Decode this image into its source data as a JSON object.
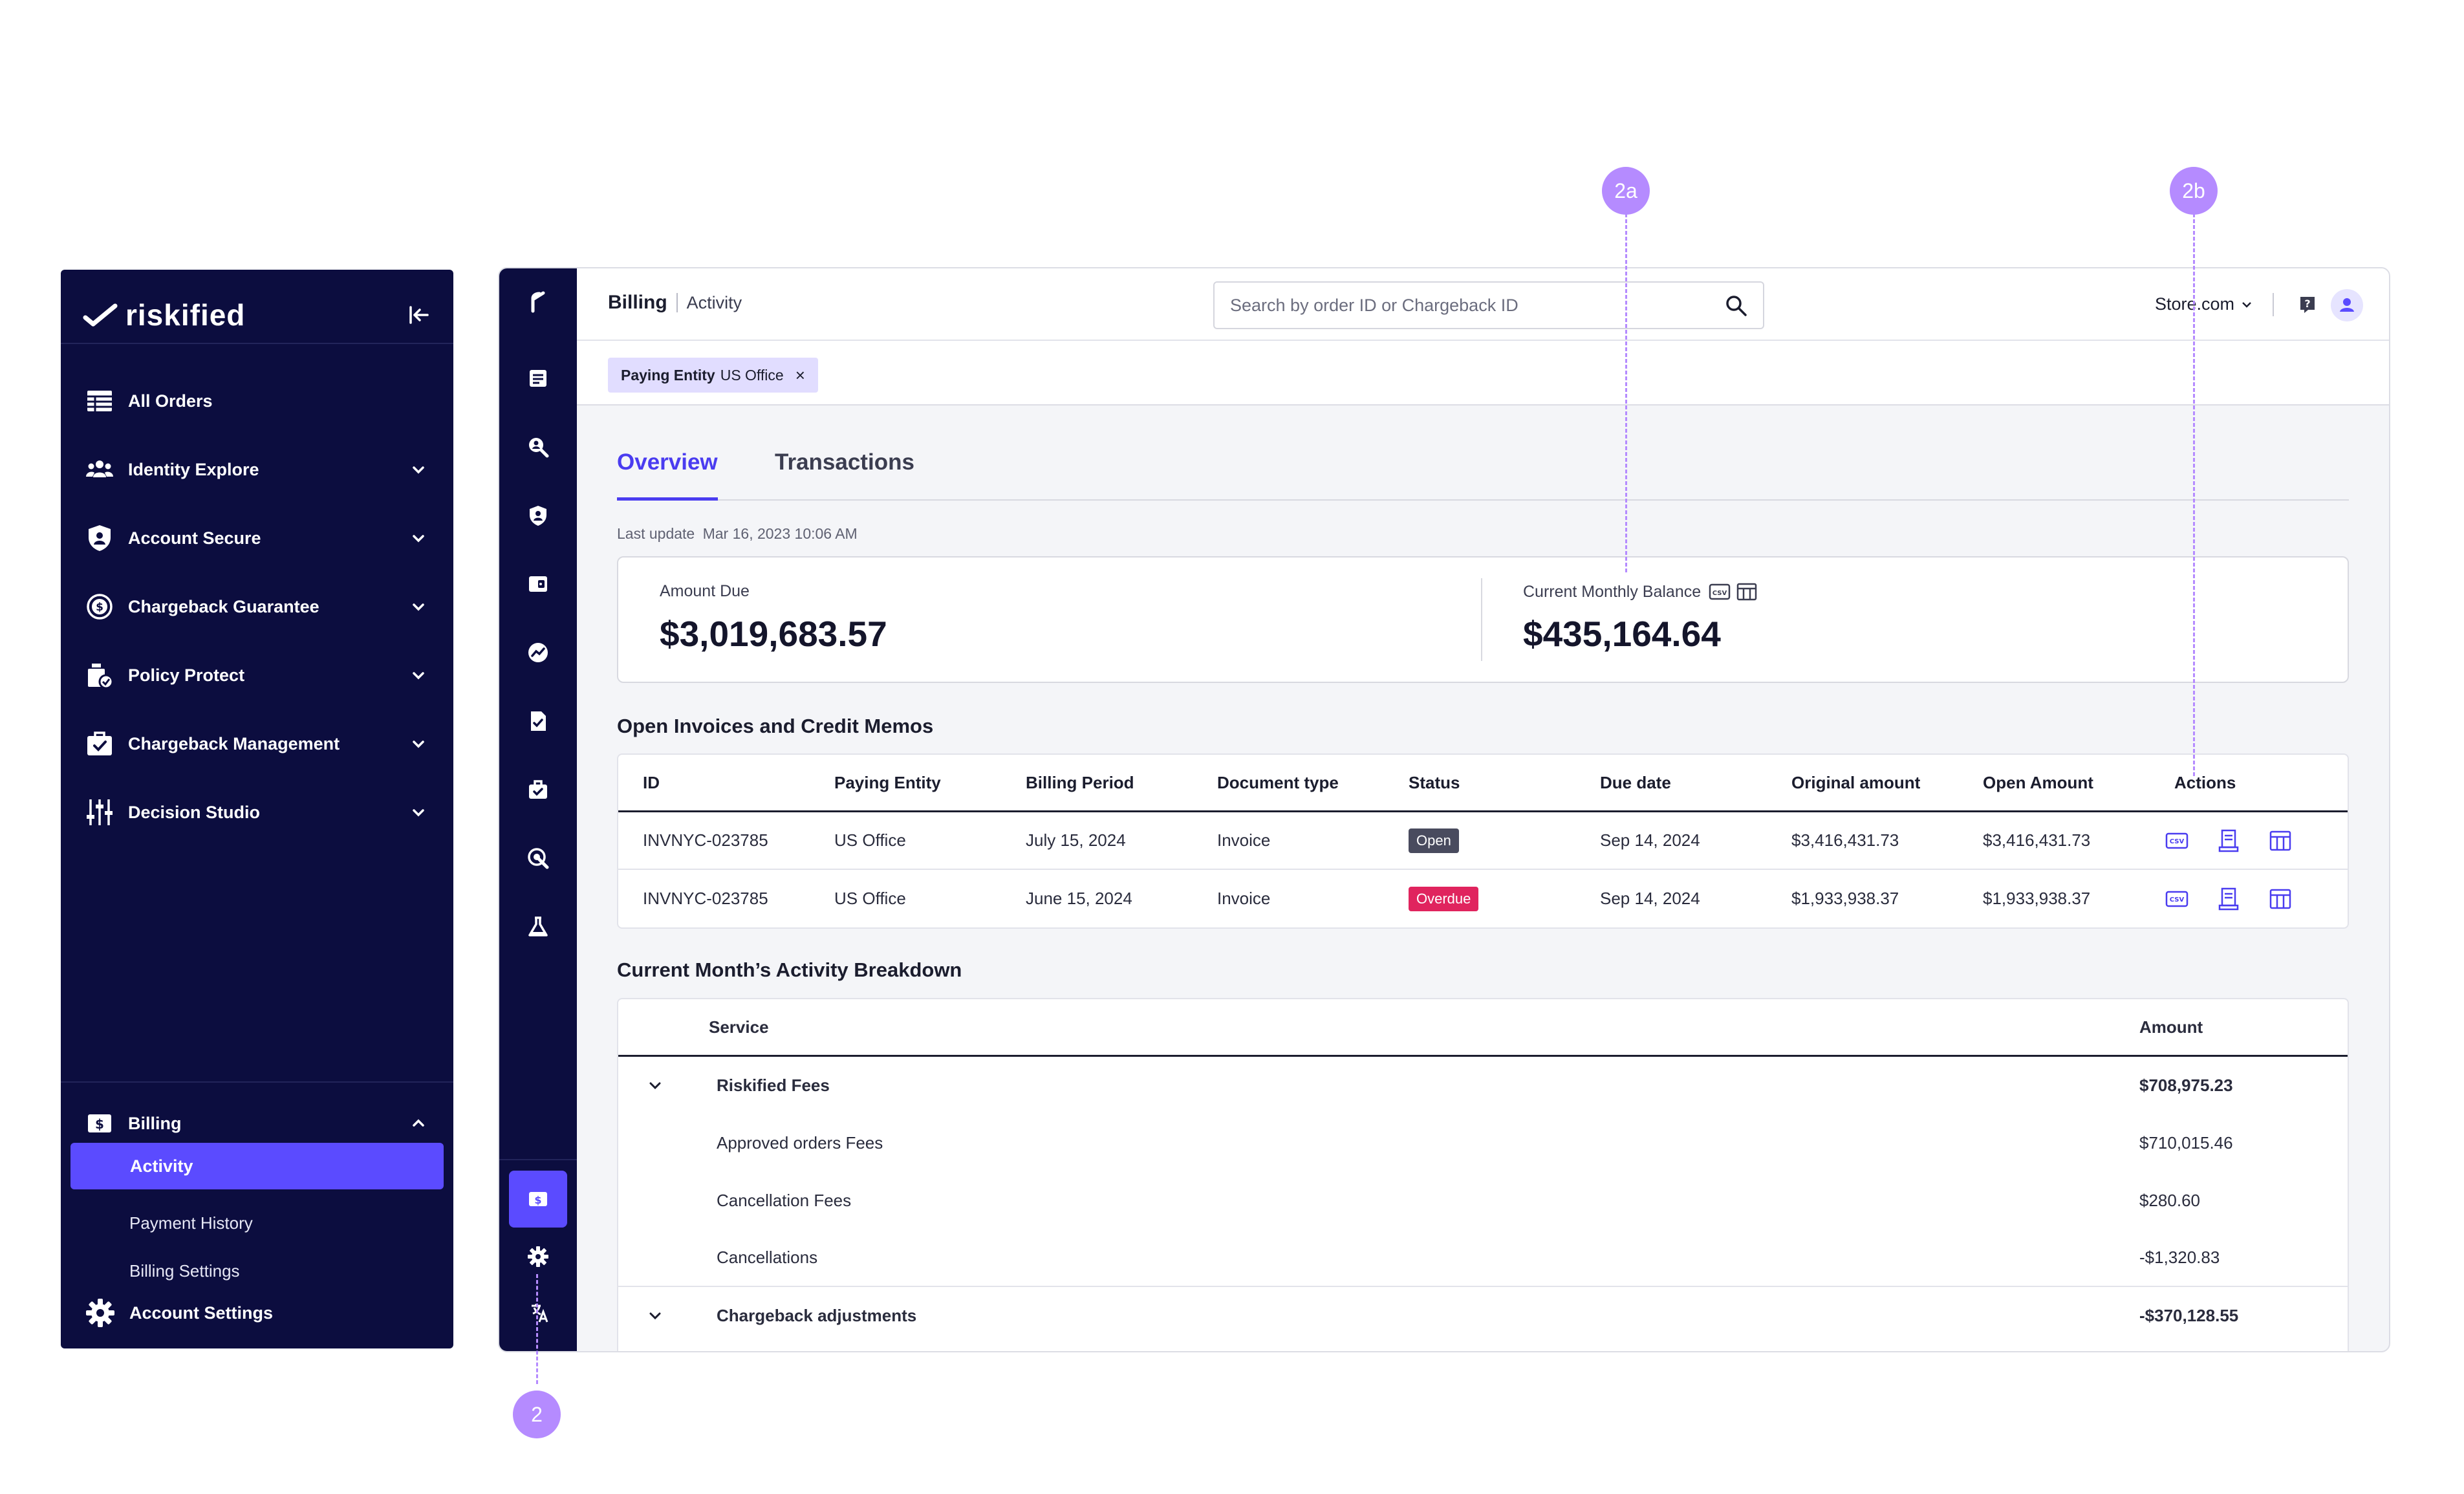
{
  "sidebar": {
    "brand": "riskified",
    "items": [
      {
        "label": "All Orders",
        "icon": "orders-table-icon",
        "chevron": false
      },
      {
        "label": "Identity Explore",
        "icon": "users-icon",
        "chevron": true
      },
      {
        "label": "Account Secure",
        "icon": "account-shield-icon",
        "chevron": true
      },
      {
        "label": "Chargeback Guarantee",
        "icon": "dollar-shield-icon",
        "chevron": true
      },
      {
        "label": "Policy Protect",
        "icon": "policy-icon",
        "chevron": true
      },
      {
        "label": "Chargeback Management",
        "icon": "briefcase-check-icon",
        "chevron": true
      },
      {
        "label": "Decision Studio",
        "icon": "sliders-icon",
        "chevron": true
      }
    ],
    "billing": {
      "label": "Billing",
      "sub_items": [
        "Activity",
        "Payment History",
        "Billing Settings"
      ],
      "active_sub": "Activity"
    },
    "account_settings": "Account Settings"
  },
  "header": {
    "breadcrumb_section": "Billing",
    "breadcrumb_page": "Activity",
    "search_placeholder": "Search by order ID or Chargeback ID",
    "store_name": "Store.com"
  },
  "filter": {
    "key": "Paying Entity",
    "value": "US Office",
    "remove": "×"
  },
  "tabs": [
    "Overview",
    "Transactions"
  ],
  "last_update": {
    "label": "Last update",
    "value": "Mar 16, 2023 10:06 AM"
  },
  "balances": {
    "amount_due_label": "Amount Due",
    "amount_due_value": "$3,019,683.57",
    "monthly_label": "Current Monthly Balance",
    "monthly_value": "$435,164.64"
  },
  "invoices": {
    "title": "Open Invoices and Credit Memos",
    "columns": [
      "ID",
      "Paying Entity",
      "Billing Period",
      "Document type",
      "Status",
      "Due date",
      "Original amount",
      "Open Amount",
      "Actions"
    ],
    "rows": [
      {
        "id": "INVNYC-023785",
        "entity": "US Office",
        "period": "July 15, 2024",
        "doc": "Invoice",
        "status": "Open",
        "status_color": "#494b5e",
        "due": "Sep 14, 2024",
        "original": "$3,416,431.73",
        "open": "$3,416,431.73"
      },
      {
        "id": "INVNYC-023785",
        "entity": "US Office",
        "period": "June 15, 2024",
        "doc": "Invoice",
        "status": "Overdue",
        "status_color": "#e0245e",
        "due": "Sep 14, 2024",
        "original": "$1,933,938.37",
        "open": "$1,933,938.37"
      }
    ]
  },
  "breakdown": {
    "title": "Current Month’s Activity Breakdown",
    "col_service": "Service",
    "col_amount": "Amount",
    "groups": [
      {
        "name": "Riskified Fees",
        "amount": "$708,975.23",
        "items": [
          {
            "name": "Approved orders Fees",
            "amount": "$710,015.46"
          },
          {
            "name": "Cancellation Fees",
            "amount": "$280.60"
          },
          {
            "name": "Cancellations",
            "amount": "-$1,320.83"
          }
        ]
      },
      {
        "name": "Chargeback adjustments",
        "amount": "-$370,128.55",
        "items": []
      }
    ]
  },
  "annotations": [
    "2a",
    "2b",
    "2"
  ],
  "colors": {
    "navy": "#0c0d3f",
    "accent": "#5b4bff",
    "annotation": "#b58bff"
  }
}
